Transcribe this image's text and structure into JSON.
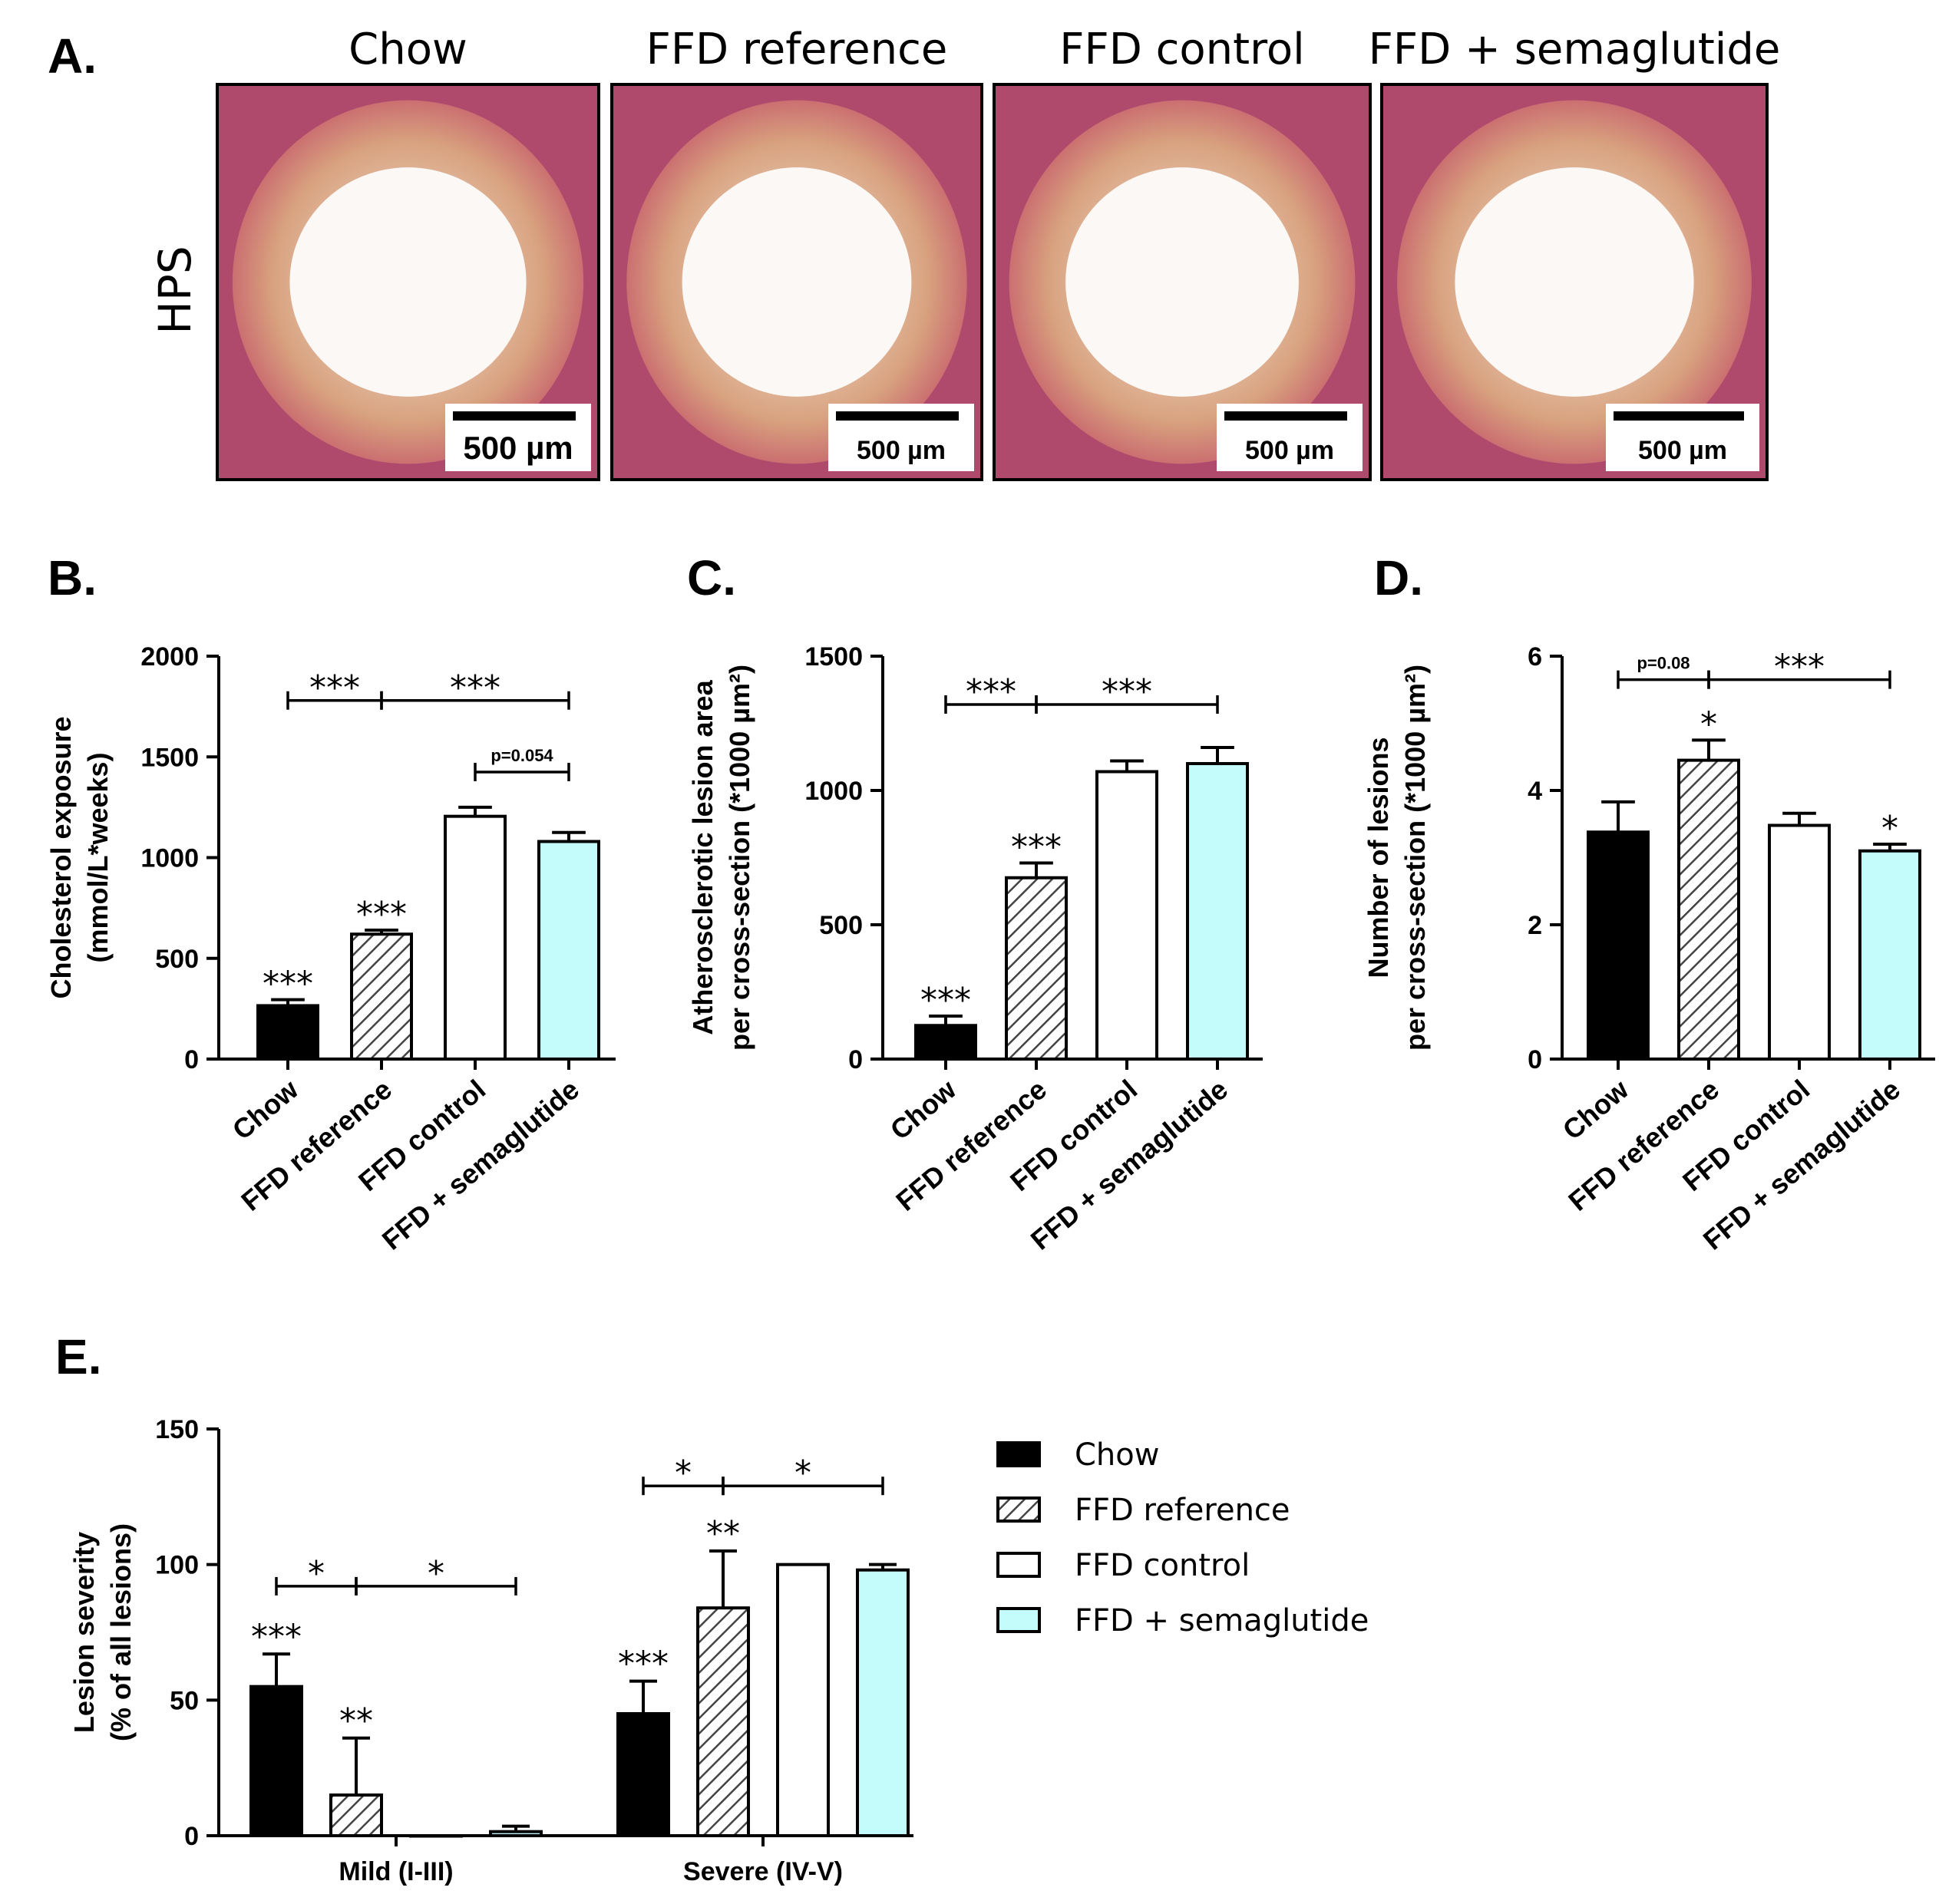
{
  "panel_letters": {
    "a": "A.",
    "b": "B.",
    "c": "C.",
    "d": "D.",
    "e": "E."
  },
  "stain_label": "HPS",
  "micrographs": [
    {
      "title": "Chow",
      "scale_bar": "500 µm"
    },
    {
      "title": "FFD reference",
      "scale_bar": "500 µm"
    },
    {
      "title": "FFD control",
      "scale_bar": "500 µm"
    },
    {
      "title": "FFD + semaglutide",
      "scale_bar": "500 µm"
    }
  ],
  "colors": {
    "chow": "#000000",
    "ffd_reference": "hatched-gray",
    "ffd_control": "#ffffff",
    "ffd_semaglutide": "#c4fbfb"
  },
  "chart_data": [
    {
      "id": "B",
      "type": "bar",
      "ylabel": [
        "Cholesterol exposure",
        "(mmol/L*weeks)"
      ],
      "categories": [
        "Chow",
        "FFD reference",
        "FFD control",
        "FFD + semaglutide"
      ],
      "values": [
        265,
        620,
        1205,
        1080
      ],
      "errors": [
        30,
        20,
        45,
        45
      ],
      "ylim": [
        0,
        2000
      ],
      "yticks": [
        "0",
        "500",
        "1000",
        "1500",
        "2000"
      ],
      "bar_annotations": [
        "***",
        "***",
        "",
        ""
      ],
      "comparisons": [
        {
          "from": 0,
          "to": 1,
          "label": "***",
          "y": 1780
        },
        {
          "from": 1,
          "to": 3,
          "label": "***",
          "y": 1780
        },
        {
          "from": 2,
          "to": 3,
          "label": "p=0.054",
          "y": 1425
        }
      ]
    },
    {
      "id": "C",
      "type": "bar",
      "ylabel": [
        "Atherosclerotic lesion area",
        "per cross-section (*1000 µm²)"
      ],
      "categories": [
        "Chow",
        "FFD reference",
        "FFD control",
        "FFD + semaglutide"
      ],
      "values": [
        125,
        675,
        1070,
        1100
      ],
      "errors": [
        35,
        55,
        40,
        60
      ],
      "ylim": [
        0,
        1500
      ],
      "yticks": [
        "0",
        "500",
        "1000",
        "1500"
      ],
      "bar_annotations": [
        "***",
        "***",
        "",
        ""
      ],
      "comparisons": [
        {
          "from": 0,
          "to": 1,
          "label": "***",
          "y": 1320
        },
        {
          "from": 1,
          "to": 3,
          "label": "***",
          "y": 1320
        }
      ]
    },
    {
      "id": "D",
      "type": "bar",
      "ylabel": [
        "Number of lesions",
        "per cross-section (*1000 µm²)"
      ],
      "categories": [
        "Chow",
        "FFD reference",
        "FFD control",
        "FFD + semaglutide"
      ],
      "values": [
        3.38,
        4.45,
        3.48,
        3.1
      ],
      "errors": [
        0.45,
        0.3,
        0.18,
        0.1
      ],
      "ylim": [
        0,
        6
      ],
      "yticks": [
        "0",
        "2",
        "4",
        "6"
      ],
      "bar_annotations": [
        "",
        "*",
        "",
        "*"
      ],
      "comparisons": [
        {
          "from": 0,
          "to": 1,
          "label": "p=0.08",
          "y": 5.65
        },
        {
          "from": 1,
          "to": 3,
          "label": "***",
          "y": 5.65
        }
      ]
    },
    {
      "id": "E",
      "type": "bar",
      "ylabel": [
        "Lesion severity",
        "(% of all lesions)"
      ],
      "groups": [
        "Mild (I-III)",
        "Severe (IV-V)"
      ],
      "series": [
        {
          "name": "Chow",
          "values": [
            55,
            45
          ],
          "errors": [
            12,
            12
          ],
          "annotations": [
            "***",
            "***"
          ]
        },
        {
          "name": "FFD reference",
          "values": [
            15,
            84
          ],
          "errors": [
            21,
            21
          ],
          "annotations": [
            "**",
            "**"
          ]
        },
        {
          "name": "FFD control",
          "values": [
            0,
            100
          ],
          "errors": [
            0,
            0
          ],
          "annotations": [
            "",
            ""
          ]
        },
        {
          "name": "FFD + semaglutide",
          "values": [
            1.5,
            98
          ],
          "errors": [
            2,
            2
          ],
          "annotations": [
            "",
            ""
          ]
        }
      ],
      "ylim": [
        0,
        150
      ],
      "yticks": [
        "0",
        "50",
        "100",
        "150"
      ],
      "legend": "right",
      "comparisons": [
        {
          "group": 0,
          "from": 0,
          "to": 1,
          "label": "*",
          "y": 92
        },
        {
          "group": 0,
          "from": 1,
          "to": 3,
          "label": "*",
          "y": 92
        },
        {
          "group": 1,
          "from": 0,
          "to": 1,
          "label": "*",
          "y": 129
        },
        {
          "group": 1,
          "from": 1,
          "to": 3,
          "label": "*",
          "y": 129
        }
      ]
    }
  ]
}
